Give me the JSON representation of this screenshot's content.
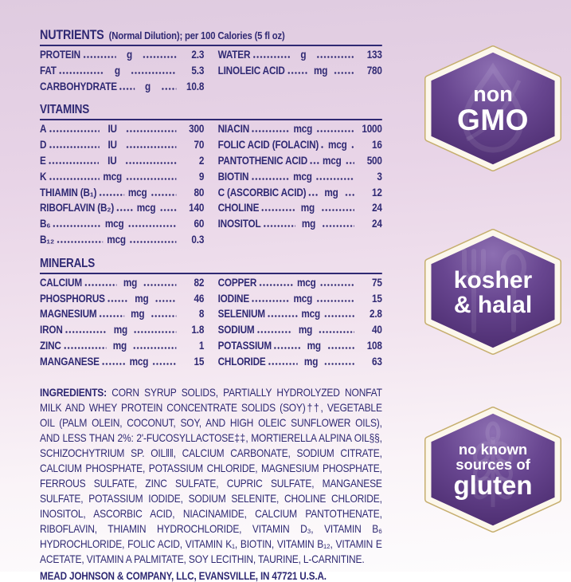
{
  "header": {
    "title": "NUTRIENTS",
    "subtitle": "(Normal Dilution); per 100 Calories (5 fl oz)"
  },
  "nutrients": {
    "left": [
      {
        "label": "PROTEIN",
        "unit": "g",
        "value": "2.3"
      },
      {
        "label": "FAT",
        "unit": "g",
        "value": "5.3"
      },
      {
        "label": "CARBOHYDRATE",
        "unit": "g",
        "value": "10.8"
      }
    ],
    "right": [
      {
        "label": "WATER",
        "unit": "g",
        "value": "133"
      },
      {
        "label": "LINOLEIC ACID",
        "unit": "mg",
        "value": "780"
      }
    ]
  },
  "vitamins": {
    "title": "VITAMINS",
    "left": [
      {
        "label": "A",
        "unit": "IU",
        "value": "300"
      },
      {
        "label": "D",
        "unit": "IU",
        "value": "70"
      },
      {
        "label": "E",
        "unit": "IU",
        "value": "2"
      },
      {
        "label": "K",
        "unit": "mcg",
        "value": "9"
      },
      {
        "label": "THIAMIN (B₁)",
        "unit": "mcg",
        "value": "80"
      },
      {
        "label": "RIBOFLAVIN (B₂)",
        "unit": "mcg",
        "value": "140"
      },
      {
        "label": "B₆",
        "unit": "mcg",
        "value": "60"
      },
      {
        "label": "B₁₂",
        "unit": "mcg",
        "value": "0.3"
      }
    ],
    "right": [
      {
        "label": "NIACIN",
        "unit": "mcg",
        "value": "1000"
      },
      {
        "label": "FOLIC ACID (FOLACIN)",
        "unit": "mcg",
        "value": "16"
      },
      {
        "label": "PANTOTHENIC ACID",
        "unit": "mcg",
        "value": "500"
      },
      {
        "label": "BIOTIN",
        "unit": "mcg",
        "value": "3"
      },
      {
        "label": "C (ASCORBIC ACID)",
        "unit": "mg",
        "value": "12"
      },
      {
        "label": "CHOLINE",
        "unit": "mg",
        "value": "24"
      },
      {
        "label": "INOSITOL",
        "unit": "mg",
        "value": "24"
      }
    ]
  },
  "minerals": {
    "title": "MINERALS",
    "left": [
      {
        "label": "CALCIUM",
        "unit": "mg",
        "value": "82"
      },
      {
        "label": "PHOSPHORUS",
        "unit": "mg",
        "value": "46"
      },
      {
        "label": "MAGNESIUM",
        "unit": "mg",
        "value": "8"
      },
      {
        "label": "IRON",
        "unit": "mg",
        "value": "1.8"
      },
      {
        "label": "ZINC",
        "unit": "mg",
        "value": "1"
      },
      {
        "label": "MANGANESE",
        "unit": "mcg",
        "value": "15"
      }
    ],
    "right": [
      {
        "label": "COPPER",
        "unit": "mcg",
        "value": "75"
      },
      {
        "label": "IODINE",
        "unit": "mcg",
        "value": "15"
      },
      {
        "label": "SELENIUM",
        "unit": "mcg",
        "value": "2.8"
      },
      {
        "label": "SODIUM",
        "unit": "mg",
        "value": "40"
      },
      {
        "label": "POTASSIUM",
        "unit": "mg",
        "value": "108"
      },
      {
        "label": "CHLORIDE",
        "unit": "mg",
        "value": "63"
      }
    ]
  },
  "ingredients": {
    "lead": "INGREDIENTS:",
    "text": " CORN SYRUP SOLIDS, PARTIALLY HYDROLYZED NONFAT MILK AND WHEY PROTEIN CONCENTRATE SOLIDS (SOY)††, VEGETABLE OIL (PALM OLEIN, COCONUT, SOY, AND HIGH OLEIC SUNFLOWER OILS), AND LESS THAN 2%: 2'-FUCOSYLLACTOSE‡‡, MORTIERELLA ALPINA OIL§§, SCHIZOCHYTRIUM SP. OIL‖‖, CALCIUM CARBONATE, SODIUM CITRATE, CALCIUM PHOSPHATE, POTASSIUM CHLORIDE, MAGNESIUM PHOSPHATE, FERROUS SULFATE, ZINC SULFATE, CUPRIC SULFATE, MANGANESE SULFATE, POTASSIUM IODIDE, SODIUM SELENITE, CHOLINE CHLORIDE, INOSITOL, ASCORBIC ACID, NIACINAMIDE, CALCIUM PANTOTHENATE, RIBOFLAVIN, THIAMIN HYDROCHLORIDE, VITAMIN D₃, VITAMIN B₆ HYDROCHLORIDE, FOLIC ACID, VITAMIN K₁, BIOTIN, VITAMIN B₁₂, VITAMIN E ACETATE, VITAMIN A PALMITATE, SOY LECITHIN, TAURINE, L-CARNITINE."
  },
  "footer": {
    "manufacturer": "MEAD JOHNSON & COMPANY, LLC, EVANSVILLE, IN 47721 U.S.A."
  },
  "badges": [
    {
      "id": "non-gmo",
      "line1": "non",
      "line2": "GMO",
      "icon": "droplet-icon"
    },
    {
      "id": "kosher-halal",
      "line1": "kosher",
      "line2": "& halal",
      "icon": "fork-spoon-icon"
    },
    {
      "id": "gluten-free",
      "line1": "no known",
      "line2": "sources of",
      "line3": "gluten",
      "icon": "wheat-icon"
    }
  ],
  "colors": {
    "text_navy": "#2f2973",
    "badge_purple_light": "#8d6fb2",
    "badge_purple_dark": "#4a2a6d",
    "badge_ring_cream": "#fcf7ec",
    "badge_rim_gold": "#c6ae6e",
    "background_top": "#dfcbe0",
    "background_bottom": "#fdfcfd"
  }
}
